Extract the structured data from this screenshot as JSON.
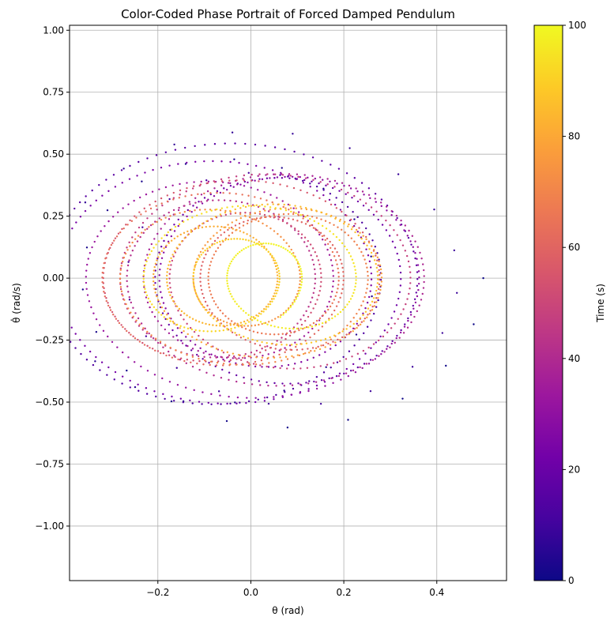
{
  "chart_data": {
    "type": "scatter",
    "title": "Color-Coded Phase Portrait of Forced Damped Pendulum",
    "xlabel": "θ (rad)",
    "ylabel": "θ̇ (rad/s)",
    "xlim": [
      -0.39,
      0.55
    ],
    "ylim": [
      -1.22,
      1.02
    ],
    "xticks": [
      -0.2,
      0.0,
      0.2,
      0.4
    ],
    "xtick_labels": [
      "−0.2",
      "0.0",
      "0.2",
      "0.4"
    ],
    "yticks": [
      -1.0,
      -0.75,
      -0.5,
      -0.25,
      0.0,
      0.25,
      0.5,
      0.75,
      1.0
    ],
    "ytick_labels": [
      "−1.00",
      "−0.75",
      "−0.50",
      "−0.25",
      "0.00",
      "0.25",
      "0.50",
      "0.75",
      "1.00"
    ],
    "grid": true,
    "colormap": "plasma",
    "colorbar": {
      "label": "Time (s)",
      "range": [
        0,
        100
      ],
      "ticks": [
        0,
        20,
        40,
        60,
        80,
        100
      ],
      "tick_labels": [
        "0",
        "20",
        "40",
        "60",
        "80",
        "100"
      ]
    },
    "initial_state": {
      "theta": 0.5,
      "theta_dot": 0.0
    },
    "time_range": [
      0,
      100
    ],
    "approx_steady_state": {
      "theta_amplitude": 0.13,
      "theta_dot_amplitude": 0.085
    }
  },
  "colors": {
    "plasma_stops": [
      "#0d0887",
      "#46039f",
      "#7201a8",
      "#9c179e",
      "#bd3786",
      "#d8576b",
      "#ed7953",
      "#fb9f3a",
      "#fdca26",
      "#f0f921"
    ],
    "grid": "#b0b0b0",
    "axes": "#000000"
  }
}
